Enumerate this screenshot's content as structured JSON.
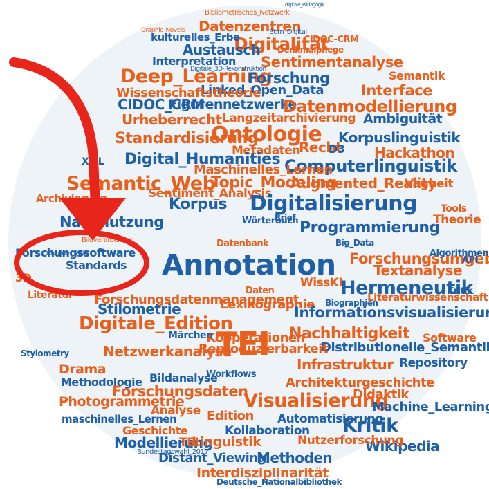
{
  "colors": {
    "background": "#eef3f8",
    "orange": "#e8601c",
    "blue": "#1f5fa8",
    "annotation": "#e8251a"
  },
  "words": [
    {
      "t": "Bibliometrisches_Netzwerk",
      "c": "o"
    },
    {
      "t": "digitale_Pädagogik",
      "c": "b"
    },
    {
      "t": "Graphic_Novels",
      "c": "o"
    },
    {
      "t": "Datenzentren",
      "c": "o"
    },
    {
      "t": "Born_Digital",
      "c": "b"
    },
    {
      "t": "Digitalität",
      "c": "o"
    },
    {
      "t": "CIDOC-CRM",
      "c": "o"
    },
    {
      "t": "kulturelles_Erbe",
      "c": "b"
    },
    {
      "t": "Austausch",
      "c": "b"
    },
    {
      "t": "Denkmalpflege",
      "c": "o"
    },
    {
      "t": "Interpretation",
      "c": "b"
    },
    {
      "t": "Sentimentanalyse",
      "c": "o"
    },
    {
      "t": "Deep_Learning",
      "c": "o"
    },
    {
      "t": "Digitale_3D-Rekonstruktion",
      "c": "b"
    },
    {
      "t": "Forschung",
      "c": "b"
    },
    {
      "t": "Semantik",
      "c": "o"
    },
    {
      "t": "Linked_Open_Data",
      "c": "b"
    },
    {
      "t": "Interface",
      "c": "o"
    },
    {
      "t": "Wissenschaftstheorie",
      "c": "o"
    },
    {
      "t": "CIDOC_CRM",
      "c": "b"
    },
    {
      "t": "Figurennetzwerke",
      "c": "b"
    },
    {
      "t": "Datenmodellierung",
      "c": "o"
    },
    {
      "t": "Urheberrecht",
      "c": "o"
    },
    {
      "t": "Langzeitarchivierung",
      "c": "o"
    },
    {
      "t": "Ambiguität",
      "c": "b"
    },
    {
      "t": "Ontologie",
      "c": "o"
    },
    {
      "t": "Standardisierung",
      "c": "o"
    },
    {
      "t": "Recht",
      "c": "o"
    },
    {
      "t": "Korpuslinguistik",
      "c": "b"
    },
    {
      "t": "Metadaten",
      "c": "o"
    },
    {
      "t": "D3",
      "c": "b"
    },
    {
      "t": "Hackathon",
      "c": "o"
    },
    {
      "t": "Digital_Humanities",
      "c": "b"
    },
    {
      "t": "Computerlinguistik",
      "c": "b"
    },
    {
      "t": "XML",
      "c": "b"
    },
    {
      "t": "Maschinelles_Lernen",
      "c": "o"
    },
    {
      "t": "Semantic_Web",
      "c": "o"
    },
    {
      "t": "Topic_Modeling",
      "c": "o"
    },
    {
      "t": "Augmented_Reality",
      "c": "o"
    },
    {
      "t": "Vagheit",
      "c": "o"
    },
    {
      "t": "Archivierung",
      "c": "o"
    },
    {
      "t": "Sentiment_Analysis",
      "c": "o"
    },
    {
      "t": "Korpus",
      "c": "b"
    },
    {
      "t": "Digitalisierung",
      "c": "b"
    },
    {
      "t": "Nachnutzung",
      "c": "b"
    },
    {
      "t": "Programmierung",
      "c": "b"
    },
    {
      "t": "Theorie",
      "c": "o"
    },
    {
      "t": "Forschungssoftware",
      "c": "b"
    },
    {
      "t": "Annotation",
      "c": "b"
    },
    {
      "t": "Datenbank",
      "c": "o"
    },
    {
      "t": "Forschungsumgebung",
      "c": "o"
    },
    {
      "t": "Standards",
      "c": "b"
    },
    {
      "t": "Textanalyse",
      "c": "o"
    },
    {
      "t": "Forschungsdatenmanagement",
      "c": "o"
    },
    {
      "t": "WissKI",
      "c": "o"
    },
    {
      "t": "Hermeneutik",
      "c": "b"
    },
    {
      "t": "Literaturwissenschaft",
      "c": "o"
    },
    {
      "t": "Stilometrie",
      "c": "b"
    },
    {
      "t": "Lexikographie",
      "c": "o"
    },
    {
      "t": "Informationsvisualisierung",
      "c": "b"
    },
    {
      "t": "Digitale_Edition",
      "c": "o"
    },
    {
      "t": "Nachhaltigkeit",
      "c": "o"
    },
    {
      "t": "Kooperationen",
      "c": "o"
    },
    {
      "t": "Distributionelle_Semantik",
      "c": "b"
    },
    {
      "t": "Netzwerkanalyse",
      "c": "o"
    },
    {
      "t": "Reproduzierbarkeit",
      "c": "o"
    },
    {
      "t": "Stylometry",
      "c": "b"
    },
    {
      "t": "TEI",
      "c": "o"
    },
    {
      "t": "Infrastruktur",
      "c": "o"
    },
    {
      "t": "Repository",
      "c": "b"
    },
    {
      "t": "Drama",
      "c": "o"
    },
    {
      "t": "Methodologie",
      "c": "b"
    },
    {
      "t": "Bildanalyse",
      "c": "b"
    },
    {
      "t": "Architekturgeschichte",
      "c": "o"
    },
    {
      "t": "Forschungsdaten",
      "c": "o"
    },
    {
      "t": "Didaktik",
      "c": "o"
    },
    {
      "t": "Photogrammetrie",
      "c": "o"
    },
    {
      "t": "Visualisierung",
      "c": "o"
    },
    {
      "t": "Machine_Learning",
      "c": "b"
    },
    {
      "t": "Analyse",
      "c": "o"
    },
    {
      "t": "Edition",
      "c": "o"
    },
    {
      "t": "maschinelles_Lernen",
      "c": "b"
    },
    {
      "t": "Automatisierung",
      "c": "b"
    },
    {
      "t": "Geschichte",
      "c": "o"
    },
    {
      "t": "Kollaboration",
      "c": "b"
    },
    {
      "t": "Kritik",
      "c": "b"
    },
    {
      "t": "Modellierung",
      "c": "b"
    },
    {
      "t": "TEI",
      "c": "o"
    },
    {
      "t": "Linguistik",
      "c": "o"
    },
    {
      "t": "Wikipedia",
      "c": "b"
    },
    {
      "t": "Nutzerforschung",
      "c": "o"
    },
    {
      "t": "Distant_Viewing",
      "c": "b"
    },
    {
      "t": "Methoden",
      "c": "b"
    },
    {
      "t": "Interdisziplinarität",
      "c": "o"
    },
    {
      "t": "Deutsche_Nationalbibliothek",
      "c": "b"
    },
    {
      "t": "Bildverarbeitung",
      "c": "o"
    },
    {
      "t": "Dokumentation",
      "c": "b"
    },
    {
      "t": "Bundestagswahl_2017",
      "c": "b"
    },
    {
      "t": "Wörterbuch",
      "c": "b"
    },
    {
      "t": "Workflows",
      "c": "b"
    },
    {
      "t": "Literatur",
      "c": "o"
    },
    {
      "t": "Daten",
      "c": "o"
    },
    {
      "t": "Biographien",
      "c": "b"
    },
    {
      "t": "Big_Data",
      "c": "b"
    },
    {
      "t": "Algorithmen",
      "c": "b"
    },
    {
      "t": "API",
      "c": "b"
    },
    {
      "t": "Tools",
      "c": "o"
    },
    {
      "t": "Software",
      "c": "o"
    },
    {
      "t": "3D",
      "c": "o"
    },
    {
      "t": "Brief",
      "c": "b"
    },
    {
      "t": "Märchen",
      "c": "b"
    },
    {
      "t": "Kritik",
      "c": "b"
    }
  ]
}
